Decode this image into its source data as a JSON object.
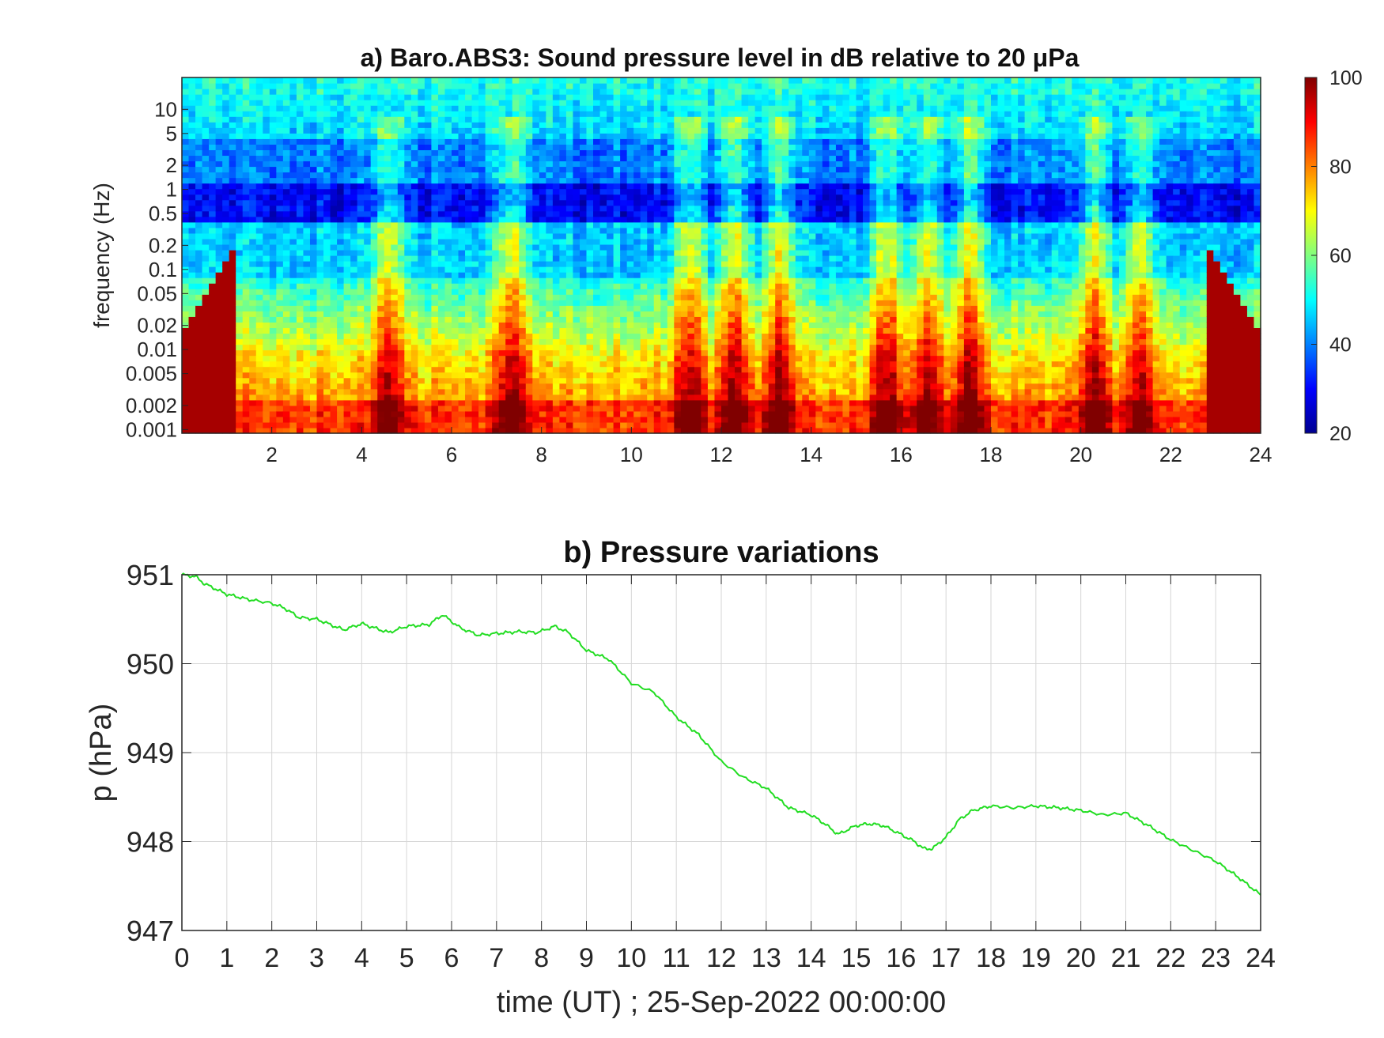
{
  "chart_data": [
    {
      "type": "heatmap",
      "title": "a) Baro.ABS3: Sound pressure level in dB relative to 20 μPa",
      "ylabel": "frequency (Hz)",
      "xlabel": "",
      "x_ticks": [
        2,
        4,
        6,
        8,
        10,
        12,
        14,
        16,
        18,
        20,
        22,
        24
      ],
      "y_ticks": [
        {
          "v": 10,
          "label": "10"
        },
        {
          "v": 5,
          "label": "5"
        },
        {
          "v": 2,
          "label": "2"
        },
        {
          "v": 1,
          "label": "1"
        },
        {
          "v": 0.5,
          "label": "0.5"
        },
        {
          "v": 0.2,
          "label": "0.2"
        },
        {
          "v": 0.1,
          "label": "0.1"
        },
        {
          "v": 0.05,
          "label": "0.05"
        },
        {
          "v": 0.02,
          "label": "0.02"
        },
        {
          "v": 0.01,
          "label": "0.01"
        },
        {
          "v": 0.005,
          "label": "0.005"
        },
        {
          "v": 0.002,
          "label": "0.002"
        },
        {
          "v": 0.001,
          "label": "0.001"
        }
      ],
      "y_scale": "log",
      "xlim": [
        0,
        24
      ],
      "ylim": [
        0.0009,
        25
      ],
      "colorbar": {
        "colormap": "jet",
        "range": [
          20,
          100
        ],
        "ticks": [
          20,
          40,
          60,
          80,
          100
        ]
      },
      "activity_peaks_hours": [
        4.6,
        7.3,
        11.3,
        12.3,
        13.3,
        15.7,
        16.6,
        17.5,
        20.3,
        21.3
      ]
    },
    {
      "type": "line",
      "title": "b) Pressure variations",
      "ylabel": "p (hPa)",
      "xlabel": "time (UT) ; 25-Sep-2022 00:00:00",
      "xlim": [
        0,
        24
      ],
      "ylim": [
        947,
        951
      ],
      "x_ticks": [
        0,
        1,
        2,
        3,
        4,
        5,
        6,
        7,
        8,
        9,
        10,
        11,
        12,
        13,
        14,
        15,
        16,
        17,
        18,
        19,
        20,
        21,
        22,
        23,
        24
      ],
      "y_ticks": [
        947,
        948,
        949,
        950,
        951
      ],
      "grid": true,
      "series": [
        {
          "color": "#22dd22",
          "x": [
            0,
            0.3,
            0.5,
            1,
            1.5,
            2,
            2.3,
            2.6,
            3,
            3.3,
            3.6,
            4,
            4.3,
            4.6,
            5,
            5.5,
            5.8,
            6.2,
            6.6,
            7,
            7.5,
            7.9,
            8.3,
            8.6,
            9,
            9.5,
            10,
            10.5,
            11,
            11.5,
            12,
            12.5,
            13,
            13.5,
            14,
            14.3,
            14.6,
            15,
            15.3,
            15.6,
            16,
            16.3,
            16.5,
            16.7,
            17,
            17.3,
            17.6,
            18,
            18.5,
            19,
            19.5,
            20,
            20.5,
            21,
            21.5,
            22,
            22.5,
            23,
            23.5,
            24
          ],
          "y": [
            951.0,
            950.98,
            950.9,
            950.78,
            950.72,
            950.68,
            950.62,
            950.52,
            950.5,
            950.44,
            950.38,
            950.45,
            950.4,
            950.35,
            950.42,
            950.44,
            950.55,
            950.4,
            950.32,
            950.34,
            950.36,
            950.35,
            950.42,
            950.35,
            950.15,
            950.05,
            949.78,
            949.68,
            949.4,
            949.2,
            948.9,
            948.72,
            948.6,
            948.38,
            948.3,
            948.2,
            948.08,
            948.18,
            948.2,
            948.18,
            948.08,
            948.0,
            947.92,
            947.92,
            948.05,
            948.25,
            948.35,
            948.4,
            948.38,
            948.4,
            948.38,
            948.35,
            948.3,
            948.32,
            948.18,
            948.02,
            947.9,
            947.78,
            947.6,
            947.4
          ]
        }
      ]
    }
  ]
}
